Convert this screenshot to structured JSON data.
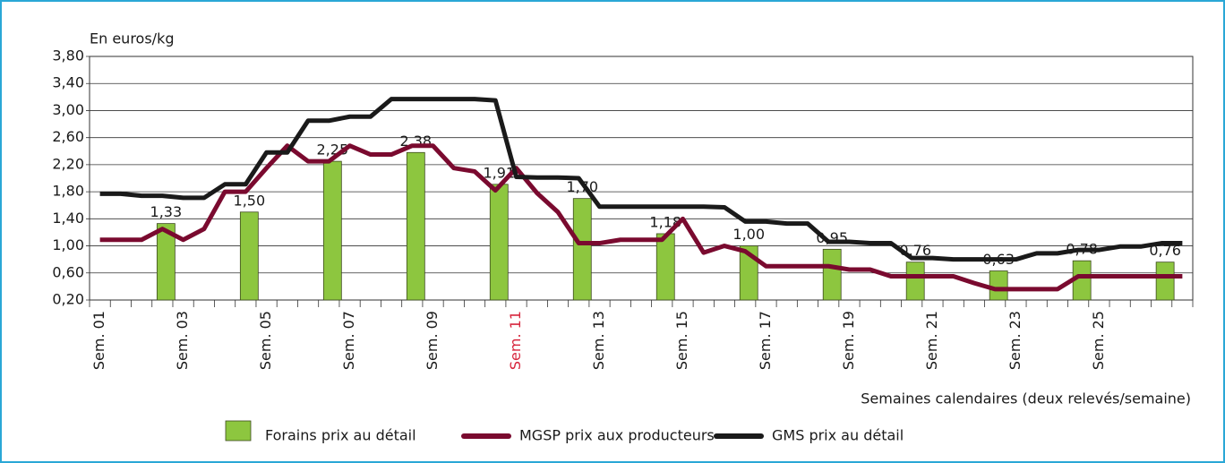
{
  "chart_data": {
    "type": "combo",
    "y_label": "En euros/kg",
    "x_label": "Semaines calendaires (deux relevés/semaine)",
    "categories": [
      "Sem. 01",
      null,
      null,
      null,
      "Sem. 03",
      null,
      null,
      null,
      "Sem. 05",
      null,
      null,
      null,
      "Sem. 07",
      null,
      null,
      null,
      "Sem. 09",
      null,
      null,
      null,
      "Sem. 11",
      null,
      null,
      null,
      "Sem. 13",
      null,
      null,
      null,
      "Sem. 15",
      null,
      null,
      null,
      "Sem. 17",
      null,
      null,
      null,
      "Sem. 19",
      null,
      null,
      null,
      "Sem. 21",
      null,
      null,
      null,
      "Sem. 23",
      null,
      null,
      null,
      "Sem. 25",
      null,
      null,
      null,
      null
    ],
    "highlight_category": {
      "index": 20,
      "color": "#d7263d"
    },
    "ylim": [
      0.2,
      3.8
    ],
    "yticks": [
      {
        "value": 0.2,
        "label": "0,20"
      },
      {
        "value": 0.6,
        "label": "0,60"
      },
      {
        "value": 1.0,
        "label": "1,00"
      },
      {
        "value": 1.4,
        "label": "1,40"
      },
      {
        "value": 1.8,
        "label": "1,80"
      },
      {
        "value": 2.2,
        "label": "2,20"
      },
      {
        "value": 2.6,
        "label": "2,60"
      },
      {
        "value": 3.0,
        "label": "3,00"
      },
      {
        "value": 3.4,
        "label": "3,40"
      },
      {
        "value": 3.8,
        "label": "3,80"
      }
    ],
    "grid": true,
    "legend": "bottom",
    "series": [
      {
        "name": "Forains prix au détail",
        "type": "bar",
        "color": "#8dc63f",
        "values": [
          null,
          null,
          null,
          1.33,
          null,
          null,
          null,
          1.5,
          null,
          null,
          null,
          2.25,
          null,
          null,
          null,
          2.38,
          null,
          null,
          null,
          1.91,
          null,
          null,
          null,
          1.7,
          null,
          null,
          null,
          1.18,
          null,
          null,
          null,
          1.0,
          null,
          null,
          null,
          0.95,
          null,
          null,
          null,
          0.76,
          null,
          null,
          null,
          0.63,
          null,
          null,
          null,
          0.78,
          null,
          null,
          null,
          0.76,
          null
        ],
        "value_labels": [
          null,
          null,
          null,
          "1,33",
          null,
          null,
          null,
          "1,50",
          null,
          null,
          null,
          "2,25",
          null,
          null,
          null,
          "2,38",
          null,
          null,
          null,
          "1,91",
          null,
          null,
          null,
          "1,70",
          null,
          null,
          null,
          "1,18",
          null,
          null,
          null,
          "1,00",
          null,
          null,
          null,
          "0,95",
          null,
          null,
          null,
          "0,76",
          null,
          null,
          null,
          "0,63",
          null,
          null,
          null,
          "0,78",
          null,
          null,
          null,
          "0,76",
          null
        ]
      },
      {
        "name": "MGSP prix aux producteurs",
        "type": "line",
        "color": "#7a0a2f",
        "values": [
          1.09,
          1.09,
          1.09,
          1.25,
          1.09,
          1.25,
          1.8,
          1.8,
          2.15,
          2.48,
          2.25,
          2.25,
          2.48,
          2.35,
          2.35,
          2.48,
          2.48,
          2.15,
          2.1,
          1.82,
          2.15,
          1.78,
          1.5,
          1.04,
          1.04,
          1.09,
          1.09,
          1.09,
          1.4,
          0.9,
          1.0,
          0.92,
          0.7,
          0.7,
          0.7,
          0.7,
          0.65,
          0.65,
          0.55,
          0.55,
          0.55,
          0.55,
          0.45,
          0.36,
          0.36,
          0.36,
          0.36,
          0.55,
          0.55,
          0.55,
          0.55,
          0.55,
          0.55
        ]
      },
      {
        "name": "GMS prix au détail",
        "type": "line",
        "color": "#1a1a1a",
        "values": [
          1.77,
          1.77,
          1.74,
          1.74,
          1.71,
          1.71,
          1.91,
          1.91,
          2.38,
          2.38,
          2.85,
          2.85,
          2.91,
          2.91,
          3.17,
          3.17,
          3.17,
          3.17,
          3.17,
          3.15,
          2.02,
          2.01,
          2.01,
          2.0,
          1.58,
          1.58,
          1.58,
          1.58,
          1.58,
          1.58,
          1.57,
          1.36,
          1.36,
          1.33,
          1.33,
          1.06,
          1.06,
          1.04,
          1.04,
          0.82,
          0.82,
          0.8,
          0.8,
          0.8,
          0.8,
          0.89,
          0.89,
          0.94,
          0.94,
          0.99,
          0.99,
          1.04,
          1.04
        ]
      }
    ]
  }
}
